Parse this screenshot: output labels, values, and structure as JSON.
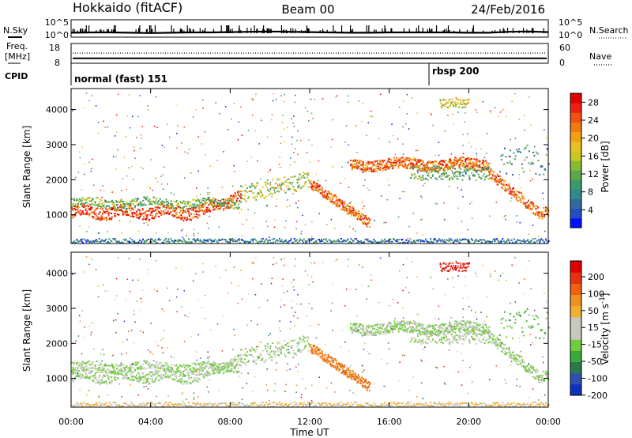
{
  "header": {
    "station": "Hokkaido (fitACF)",
    "beam": "Beam 00",
    "date": "24/Feb/2016"
  },
  "colors": {
    "ink": "#000000",
    "lowscatter": "#c8c8c0"
  },
  "chart_data": [
    {
      "type": "line",
      "name": "nsky-nsearch-strip",
      "left_label": "N.Sky",
      "right_label": "N.Search",
      "yticks_left": [
        "10^5",
        "10^0"
      ],
      "yticks_right": [
        "10^5",
        "10^0"
      ],
      "x_hours": [
        0,
        1,
        2,
        3,
        4,
        5,
        6,
        7,
        8,
        9,
        10,
        11,
        12,
        13,
        14,
        15,
        16,
        17,
        18,
        19,
        20,
        21,
        22,
        23,
        24
      ],
      "nsky_level": [
        0.45,
        0.5,
        0.5,
        0.45,
        0.4,
        0.45,
        0.5,
        0.5,
        0.55,
        0.6,
        0.65,
        0.6,
        0.55,
        0.5,
        0.45,
        0.45,
        0.5,
        0.5,
        0.5,
        0.5,
        0.45,
        0.45,
        0.6,
        0.65,
        0.55
      ]
    },
    {
      "type": "line",
      "name": "freq-nave-strip",
      "left_label_1": "Freq.",
      "left_label_2": "[MHz]",
      "right_label": "Nave",
      "yticks_left": [
        "18",
        "8"
      ],
      "yticks_right": [
        "60",
        "0"
      ],
      "freq_mhz": 10.5,
      "nave": 34
    },
    {
      "type": "table",
      "name": "cpid-strip",
      "label": "CPID",
      "segments": [
        {
          "text": "normal (fast) 151",
          "start_hour": 0,
          "end_hour": 18
        },
        {
          "text": "rbsp 200",
          "start_hour": 18,
          "end_hour": 24
        }
      ]
    },
    {
      "type": "heatmap",
      "name": "power-panel",
      "ylabel": "Slant Range [km]",
      "yticks": [
        1000,
        2000,
        3000,
        4000
      ],
      "ylim": [
        180,
        4600
      ],
      "xlim": [
        0,
        24
      ],
      "colorbar": {
        "label": "Power [dB]",
        "ticks": [
          4,
          8,
          12,
          16,
          20,
          24,
          28
        ],
        "range": [
          0,
          30
        ],
        "colors": [
          "#0010ff",
          "#2050c0",
          "#306aa0",
          "#2f8a8a",
          "#3a9a6a",
          "#5aa84a",
          "#8ab830",
          "#c8c820",
          "#e8c020",
          "#f0a018",
          "#f07a10",
          "#f05010",
          "#f02010",
          "#e00000"
        ]
      }
    },
    {
      "type": "heatmap",
      "name": "velocity-panel",
      "ylabel": "Slant Range [km]",
      "yticks": [
        1000,
        2000,
        3000,
        4000
      ],
      "ylim": [
        180,
        4600
      ],
      "xlim": [
        0,
        24
      ],
      "xticks": [
        "00:00",
        "04:00",
        "08:00",
        "12:00",
        "16:00",
        "20:00",
        "00:00"
      ],
      "xlabel": "Time UT",
      "colorbar": {
        "label": "Velocity [m s",
        "label_sup": "-1",
        "label_end": "]",
        "ticks": [
          "200",
          "100",
          "50",
          "15",
          "-15",
          "-50",
          "-100",
          "-200"
        ],
        "colors": [
          "#1030c0",
          "#3050b0",
          "#2c7a4a",
          "#3aaa3a",
          "#70cc40",
          "#c8c8c0",
          "#c8c8c0",
          "#f0b030",
          "#f09020",
          "#f06010",
          "#e83010",
          "#e00000"
        ]
      }
    }
  ]
}
